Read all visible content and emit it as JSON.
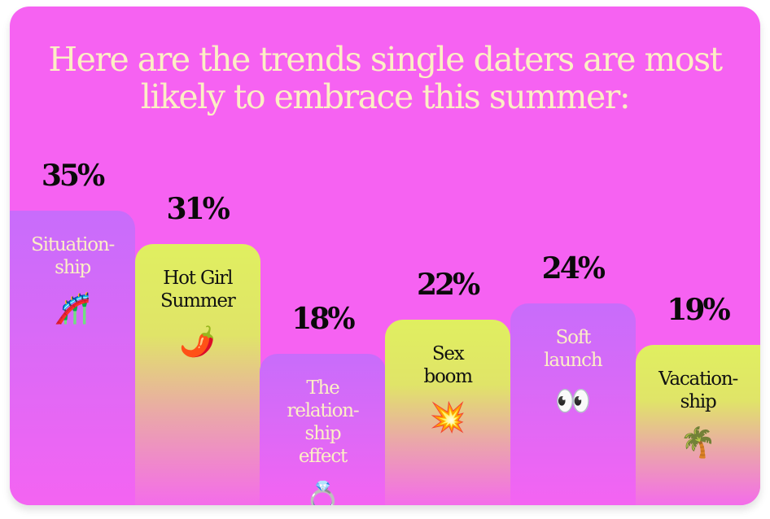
{
  "chart_data": {
    "type": "bar",
    "title": "Here are the trends single daters are most likely to embrace this summer:",
    "categories": [
      "Situation-ship",
      "Hot Girl Summer",
      "The relation-ship effect",
      "Sex boom",
      "Soft launch",
      "Vacation-ship"
    ],
    "values": [
      35,
      31,
      18,
      22,
      24,
      19
    ],
    "value_labels": [
      "35%",
      "31%",
      "18%",
      "22%",
      "24%",
      "19%"
    ],
    "emoji": [
      "🎢",
      "🌶️",
      "💍",
      "💥",
      "👀",
      "🌴"
    ],
    "emoji_names": [
      "roller-coaster-icon",
      "chili-pepper-icon",
      "ring-icon",
      "collision-icon",
      "eyes-icon",
      "palm-tree-icon"
    ],
    "bar_styles": [
      "purple",
      "yellow",
      "purple",
      "yellow",
      "purple",
      "yellow"
    ],
    "colors": {
      "background": "#f662f2",
      "purple": "#c86cfb",
      "yellow": "#e0ef60",
      "title": "#fcefc4"
    },
    "grid": false,
    "legend": "none"
  }
}
